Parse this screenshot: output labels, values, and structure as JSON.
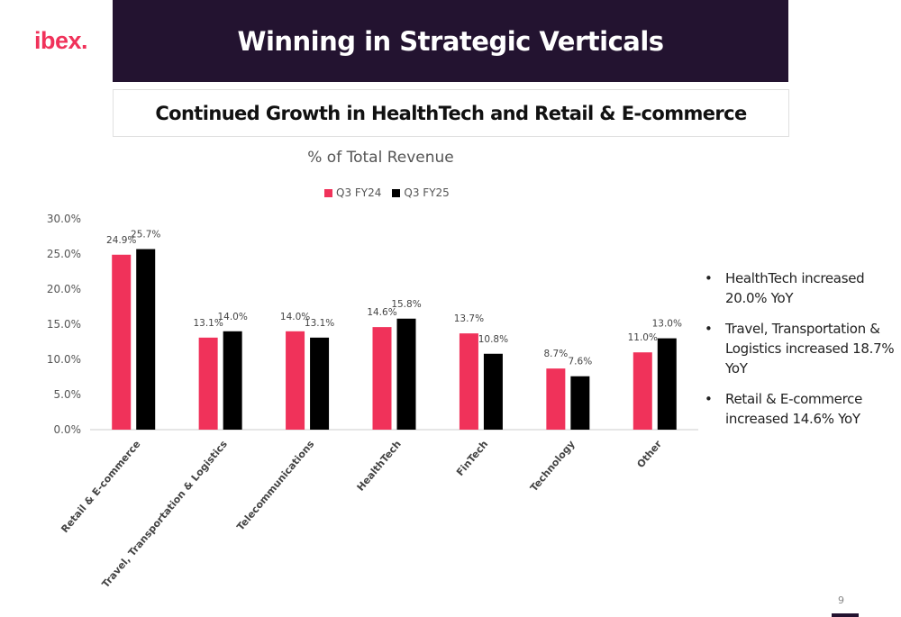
{
  "logo": "ibex.",
  "title": "Winning in Strategic Verticals",
  "subtitle": "Continued Growth in HealthTech and Retail & E-commerce",
  "bullets": [
    "HealthTech increased 20.0% YoY",
    "Travel, Transportation & Logistics increased 18.7% YoY",
    "Retail & E-commerce increased 14.6% YoY"
  ],
  "page_number": "9",
  "colors": {
    "q3fy24": "#f0325a",
    "q3fy25": "#000000",
    "header_bg": "#231330",
    "logo": "#f0325a"
  },
  "chart_data": {
    "type": "bar",
    "title": "% of Total Revenue",
    "categories": [
      "Retail & E-commerce",
      "Travel, Transportation & Logistics",
      "Telecommunications",
      "HealthTech",
      "FinTech",
      "Technology",
      "Other"
    ],
    "series": [
      {
        "name": "Q3 FY24",
        "values": [
          24.9,
          13.1,
          14.0,
          14.6,
          13.7,
          8.7,
          11.0
        ],
        "labels": [
          "24.9%",
          "13.1%",
          "14.0%",
          "14.6%",
          "13.7%",
          "8.7%",
          "11.0%"
        ]
      },
      {
        "name": "Q3 FY25",
        "values": [
          25.7,
          14.0,
          13.1,
          15.8,
          10.8,
          7.6,
          13.0
        ],
        "labels": [
          "25.7%",
          "14.0%",
          "13.1%",
          "15.8%",
          "10.8%",
          "7.6%",
          "13.0%"
        ]
      }
    ],
    "yticks": [
      "0.0%",
      "5.0%",
      "10.0%",
      "15.0%",
      "20.0%",
      "25.0%",
      "30.0%"
    ],
    "ylim": [
      0,
      30
    ],
    "legend_position": "top-center",
    "grid": false
  }
}
